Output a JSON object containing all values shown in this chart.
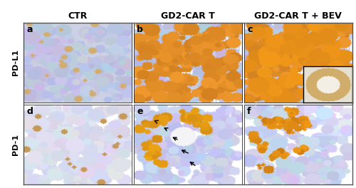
{
  "col_labels": [
    "CTR",
    "GD2-CAR T",
    "GD2-CAR T + BEV"
  ],
  "row_labels": [
    "PD-L1",
    "PD-1"
  ],
  "panel_letters": [
    [
      "a",
      "b",
      "c"
    ],
    [
      "d",
      "e",
      "f"
    ]
  ],
  "col_label_fontsize": 9,
  "row_label_fontsize": 8,
  "panel_letter_fontsize": 9,
  "fig_bg": "#ffffff",
  "border_color": "#000000",
  "outer_border_color": "#888888",
  "panel_bg_a": "#c8d4e0",
  "panel_bg_b": "#c4a870",
  "panel_bg_c": "#b8a060",
  "panel_bg_d": "#ccd6e4",
  "panel_bg_e": "#c4b880",
  "panel_bg_f": "#ccd6e4"
}
